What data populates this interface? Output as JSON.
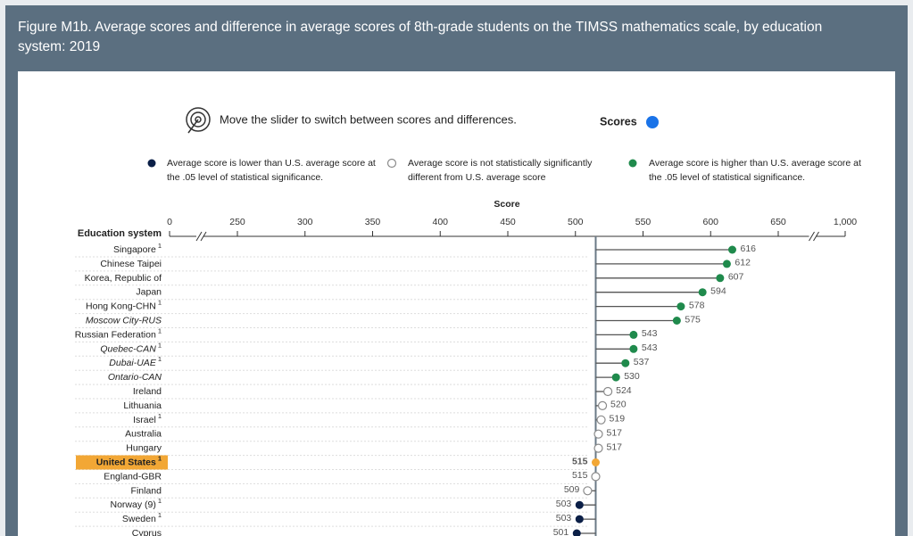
{
  "chart_data": {
    "type": "lollipop",
    "title": "Figure M1b. Average scores and difference in average scores of 8th-grade students on the TIMSS mathematics scale, by education system: 2019",
    "instruction": "Move the slider to switch between scores and differences.",
    "toggle_label": "Scores",
    "legend": [
      {
        "label": "Average score is lower than U.S. average score at the .05 level of statistical significance.",
        "color": "#0b1f47",
        "hollow": false
      },
      {
        "label": "Average score is not statistically significantly different from U.S. average score",
        "color": "#8a8a8a",
        "hollow": true
      },
      {
        "label": "Average score is higher than U.S. average score at the .05 level of statistical significance.",
        "color": "#1f8a4c",
        "hollow": false
      }
    ],
    "x_label": "Score",
    "category_header": "Education system",
    "categories": [
      "Singapore",
      "Chinese Taipei",
      "Korea, Republic of",
      "Japan",
      "Hong Kong-CHN",
      "Moscow City-RUS",
      "Russian Federation",
      "Quebec-CAN",
      "Dubai-UAE",
      "Ontario-CAN",
      "Ireland",
      "Lithuania",
      "Israel",
      "Australia",
      "Hungary",
      "United States",
      "England-GBR",
      "Finland",
      "Norway (9)",
      "Sweden",
      "Cyprus"
    ],
    "footnotes": [
      "1",
      null,
      null,
      null,
      "1",
      null,
      "1",
      "1",
      "1",
      null,
      null,
      null,
      "1",
      null,
      null,
      "1",
      null,
      null,
      "1",
      "1",
      null
    ],
    "italic": [
      false,
      false,
      false,
      false,
      false,
      true,
      false,
      true,
      true,
      true,
      false,
      false,
      false,
      false,
      false,
      false,
      false,
      false,
      false,
      false,
      false
    ],
    "values": [
      616,
      612,
      607,
      594,
      578,
      575,
      543,
      543,
      537,
      530,
      524,
      520,
      519,
      517,
      517,
      515,
      515,
      509,
      503,
      503,
      501
    ],
    "groups": [
      2,
      2,
      2,
      2,
      2,
      2,
      2,
      2,
      2,
      2,
      1,
      1,
      1,
      1,
      1,
      null,
      1,
      1,
      0,
      0,
      0
    ],
    "highlight_index": 15,
    "highlight_color": "#f2a735",
    "xlim": [
      0,
      1000
    ],
    "xticks": [
      0,
      250,
      300,
      350,
      400,
      450,
      500,
      550,
      600,
      650,
      {
        "value": 1000,
        "label": "1,000"
      }
    ],
    "axis_breaks": [
      [
        0,
        250
      ],
      [
        650,
        1000
      ]
    ]
  }
}
